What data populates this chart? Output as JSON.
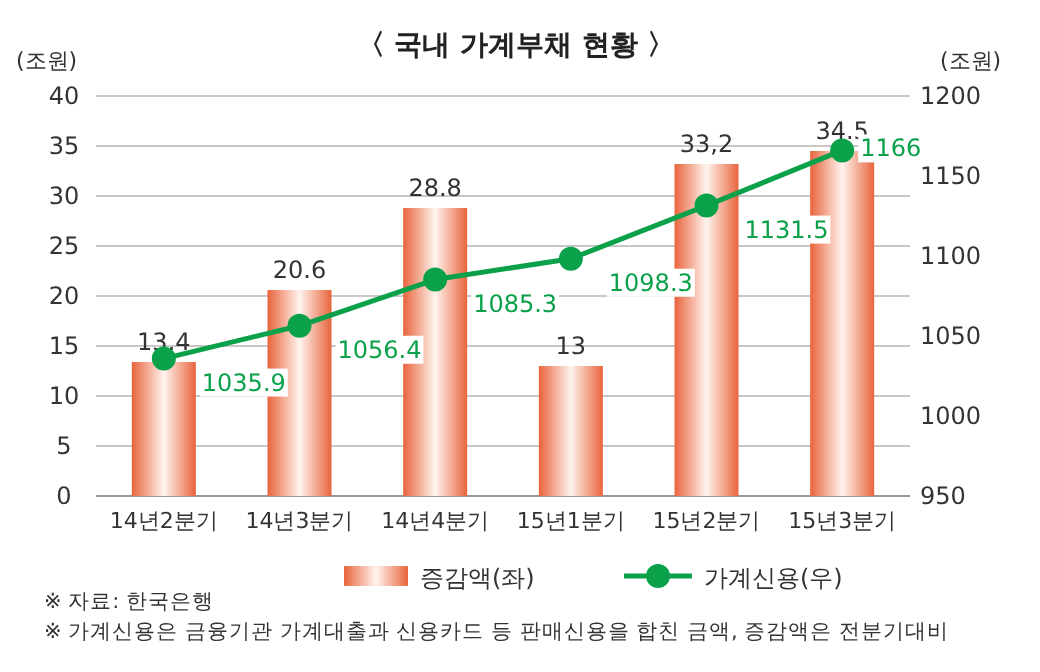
{
  "chart_data": {
    "type": "bar",
    "title": "〈 국내 가계부채 현황 〉",
    "ylabel": "(조원)",
    "y2label": "(조원)",
    "categories": [
      "14년2분기",
      "14년3분기",
      "14년4분기",
      "15년1분기",
      "15년2분기",
      "15년3분기"
    ],
    "series": [
      {
        "name": "증감액(좌)",
        "color": "#e8643c",
        "values": [
          13.4,
          20.6,
          28.8,
          13,
          33.2,
          34.5
        ],
        "value_labels": [
          "13.4",
          "20.6",
          "28.8",
          "13",
          "33,2",
          "34.5"
        ]
      },
      {
        "name": "가계신용(우)",
        "type": "line",
        "axis": "y2",
        "color": "#0aa14a",
        "marker": "circle",
        "values": [
          1035.9,
          1056.4,
          1085.3,
          1098.3,
          1131.5,
          1166
        ],
        "value_labels": [
          "1035.9",
          "1056.4",
          "1085.3",
          "1098.3",
          "1131.5",
          "1166"
        ]
      }
    ],
    "ylim": [
      0,
      40
    ],
    "yticks": [
      0,
      5,
      10,
      15,
      20,
      25,
      30,
      35,
      40
    ],
    "y2lim": [
      950,
      1200
    ],
    "y2ticks": [
      950,
      1000,
      1050,
      1100,
      1150,
      1200
    ],
    "grid": "y",
    "legend": "bottom",
    "annotations": [
      "※ 자료: 한국은행",
      "※ 가계신용은 금융기관 가계대출과 신용카드 등 판매신용을 합친 금액, 증감액은 전분기대비"
    ]
  }
}
